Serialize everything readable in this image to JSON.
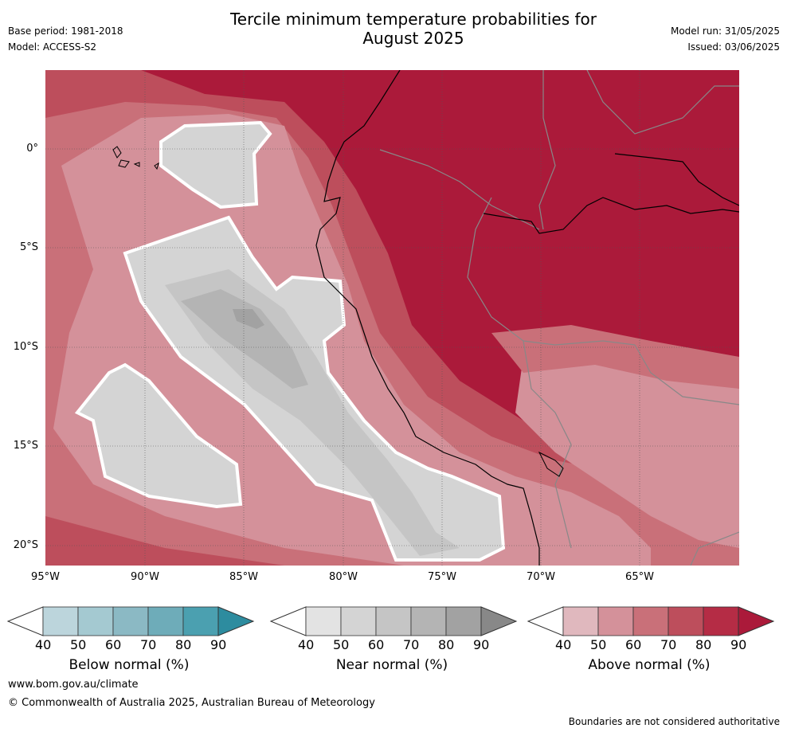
{
  "title": {
    "line1": "Tercile minimum temperature probabilities for",
    "line2": "August 2025"
  },
  "meta_left": {
    "base_period": "Base period: 1981-2018",
    "model": "Model: ACCESS-S2"
  },
  "meta_right": {
    "model_run": "Model run: 31/05/2025",
    "issued": "Issued: 03/06/2025"
  },
  "map": {
    "lat_labels": [
      "0°",
      "5°S",
      "10°S",
      "15°S",
      "20°S"
    ],
    "lon_labels": [
      "95°W",
      "90°W",
      "85°W",
      "80°W",
      "75°W",
      "70°W",
      "65°W"
    ],
    "colors": {
      "above": [
        "#e0b8be",
        "#d4919a",
        "#c97079",
        "#bd4e5c",
        "#b52c45",
        "#ab1a3a"
      ],
      "near": [
        "#e3e3e3",
        "#d4d4d4",
        "#c5c5c5",
        "#b4b4b4",
        "#a2a2a2",
        "#888888"
      ],
      "below": [
        "#bcd5dc",
        "#a4c9d1",
        "#8bb9c4",
        "#6eacb9",
        "#4ba0b0",
        "#2d8c9f"
      ],
      "white_contour": "#ffffff",
      "border_gray": "#888888"
    }
  },
  "colorbars": [
    {
      "title": "Below normal (%)",
      "ticks": [
        "40",
        "50",
        "60",
        "70",
        "80",
        "90"
      ],
      "palette": "below"
    },
    {
      "title": "Near normal (%)",
      "ticks": [
        "40",
        "50",
        "60",
        "70",
        "80",
        "90"
      ],
      "palette": "near"
    },
    {
      "title": "Above normal (%)",
      "ticks": [
        "40",
        "50",
        "60",
        "70",
        "80",
        "90"
      ],
      "palette": "above"
    }
  ],
  "footer": {
    "url": "www.bom.gov.au/climate",
    "copyright": "© Commonwealth of Australia 2025, Australian Bureau of Meteorology",
    "disclaimer": "Boundaries are not considered authoritative"
  }
}
